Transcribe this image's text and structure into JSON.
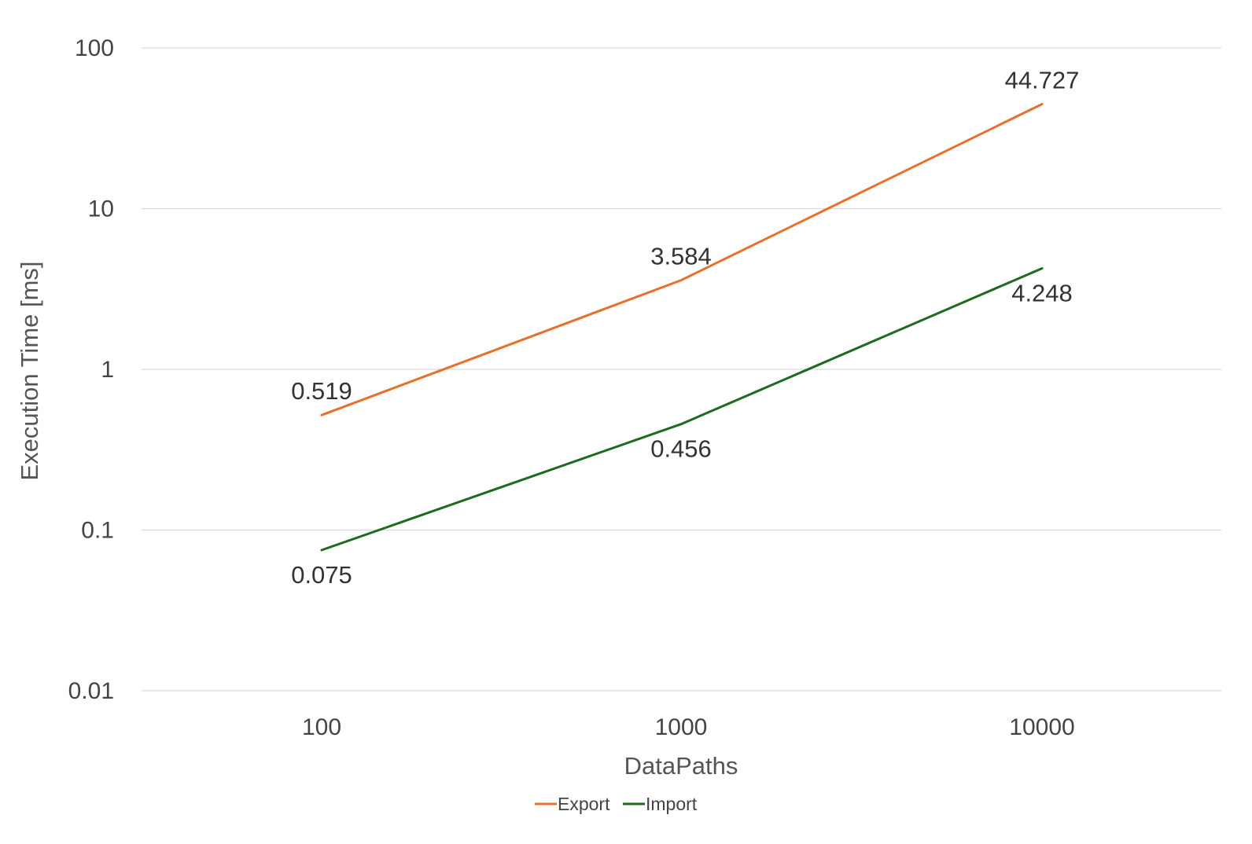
{
  "chart_data": {
    "type": "line",
    "title": "",
    "xlabel": "DataPaths",
    "ylabel": "Execution Time [ms]",
    "x_scale": "categorical",
    "y_scale": "log",
    "categories": [
      "100",
      "1000",
      "10000"
    ],
    "yticks": [
      {
        "value": 0.01,
        "label": "0.01"
      },
      {
        "value": 0.1,
        "label": "0.1"
      },
      {
        "value": 1,
        "label": "1"
      },
      {
        "value": 10,
        "label": "10"
      },
      {
        "value": 100,
        "label": "100"
      }
    ],
    "ylim": [
      0.01,
      100
    ],
    "grid": "horizontal",
    "legend_position": "bottom",
    "series": [
      {
        "name": "Export",
        "color": "#E8702A",
        "values": [
          0.519,
          3.584,
          44.727
        ],
        "labels": [
          "0.519",
          "3.584",
          "44.727"
        ],
        "label_position": "above"
      },
      {
        "name": "Import",
        "color": "#1E6A1E",
        "values": [
          0.075,
          0.456,
          4.248
        ],
        "labels": [
          "0.075",
          "0.456",
          "4.248"
        ],
        "label_position": "below"
      }
    ]
  }
}
